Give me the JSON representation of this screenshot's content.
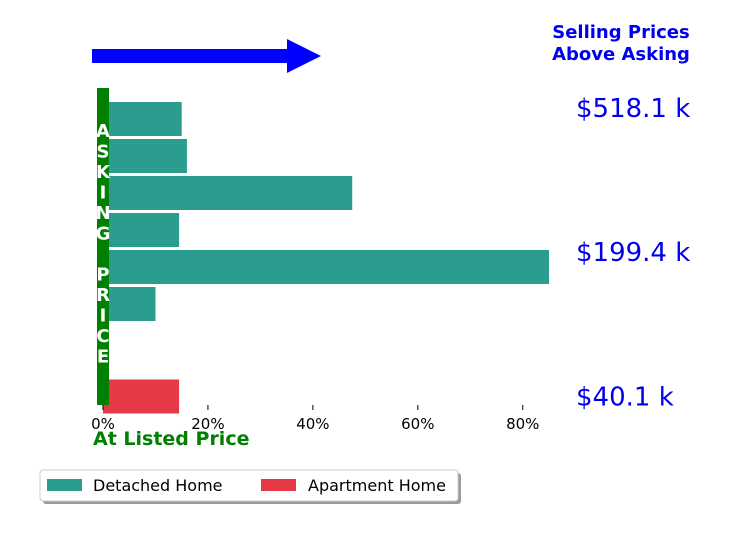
{
  "chart_data": {
    "type": "bar",
    "orientation": "horizontal",
    "title": "Selling Prices\nAbove Asking",
    "xlabel": "At Listed Price",
    "vertical_bar_label": "ASKING PRICE",
    "xlim": [
      0,
      85
    ],
    "x_ticks": [
      {
        "value": 0,
        "label": "0%"
      },
      {
        "value": 20,
        "label": "20%"
      },
      {
        "value": 40,
        "label": "40%"
      },
      {
        "value": 60,
        "label": "60%"
      },
      {
        "value": 80,
        "label": "80%"
      }
    ],
    "price_labels": [
      {
        "row": -0.3,
        "label": "$518.1 k"
      },
      {
        "row": 3.6,
        "label": "$199.4 k"
      },
      {
        "row": 7.5,
        "label": "$40.1 k"
      }
    ],
    "series": [
      {
        "name": "Detached Home",
        "color": "#2a9d8f",
        "rows": [
          0,
          1,
          2,
          3,
          4,
          5
        ],
        "values": [
          15,
          16,
          47.5,
          14.5,
          85,
          10
        ]
      },
      {
        "name": "Apartment Home",
        "color": "#e63946",
        "rows": [
          7.5
        ],
        "values": [
          14.5
        ]
      }
    ],
    "legend_position": "bottom-left",
    "grid": false,
    "colors": {
      "asking_bar": "#008000",
      "arrow": "#0000ff",
      "price_text": "#0000ee"
    }
  }
}
